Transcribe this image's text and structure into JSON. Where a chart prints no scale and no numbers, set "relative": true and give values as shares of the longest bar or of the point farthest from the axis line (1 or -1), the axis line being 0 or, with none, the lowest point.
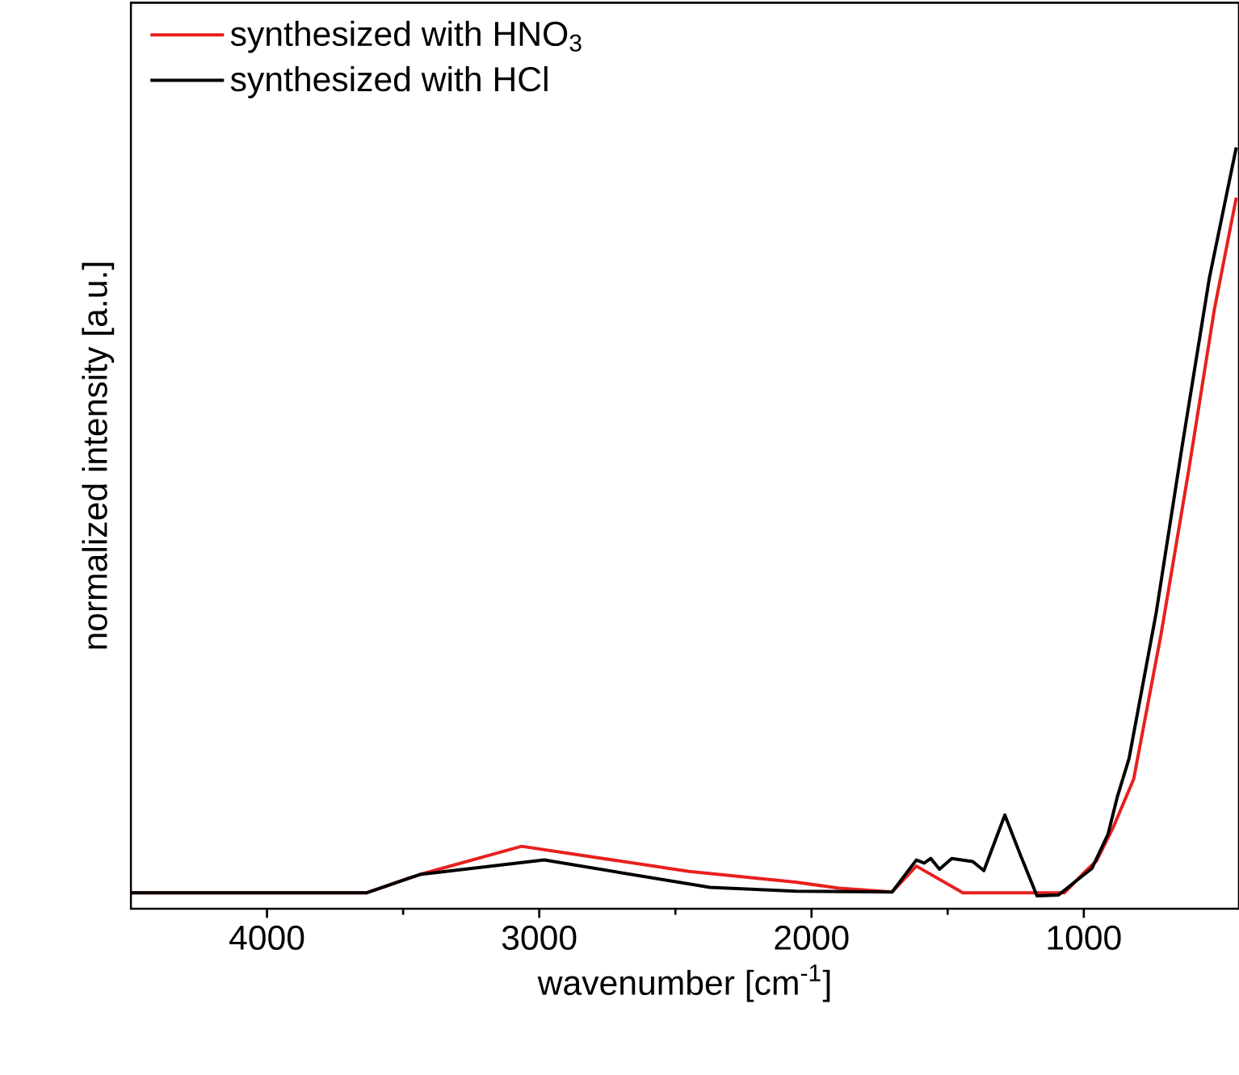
{
  "chart_data": {
    "type": "line",
    "xlabel": "wavenumber [cm$^{-1}$]",
    "ylabel": "normalized intensity [a.u.]",
    "relative": true,
    "xlim": [
      4500,
      430
    ],
    "xticks": [
      4000,
      3000,
      2000,
      1000
    ],
    "legend": "top left",
    "line_style": "solid",
    "marker": "none",
    "series": [
      {
        "name": "synthesized with HNO$_{3}$",
        "color": "#e8201e",
        "x": [
          4500,
          3633,
          3438,
          3065,
          2450,
          2059,
          1900,
          1704,
          1615,
          1444,
          1071,
          994,
          953,
          893,
          817,
          716,
          616,
          521,
          440
        ],
        "values": [
          0.021,
          0.021,
          0.045,
          0.082,
          0.049,
          0.035,
          0.027,
          0.022,
          0.056,
          0.021,
          0.021,
          0.049,
          0.063,
          0.106,
          0.17,
          0.361,
          0.573,
          0.786,
          0.934
        ]
      },
      {
        "name": "synthesized with HCl",
        "color": "#000000",
        "x": [
          4500,
          3633,
          3438,
          2982,
          2373,
          2059,
          1704,
          1615,
          1586,
          1562,
          1530,
          1485,
          1408,
          1367,
          1290,
          1231,
          1172,
          1093,
          1030,
          970,
          911,
          876,
          834,
          734,
          639,
          539,
          440
        ],
        "values": [
          0.021,
          0.021,
          0.045,
          0.064,
          0.028,
          0.023,
          0.022,
          0.064,
          0.06,
          0.066,
          0.052,
          0.066,
          0.062,
          0.05,
          0.123,
          0.069,
          0.017,
          0.018,
          0.036,
          0.053,
          0.098,
          0.148,
          0.197,
          0.389,
          0.607,
          0.828,
          1.0
        ]
      }
    ]
  }
}
